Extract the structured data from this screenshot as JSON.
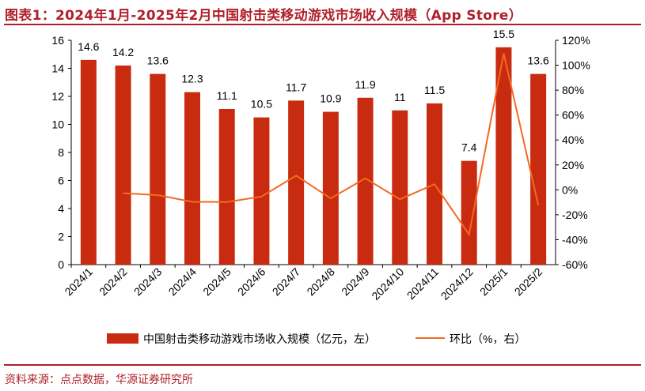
{
  "title": "图表1：2024年1月-2025年2月中国射击类移动游戏市场收入规模（App Store）",
  "source": "资料来源：点点数据，华源证券研究所",
  "colors": {
    "bar": "#c82b0f",
    "line": "#f26a21",
    "title": "#b0202a"
  },
  "chart_data": {
    "type": "bar+line",
    "categories": [
      "2024/1",
      "2024/2",
      "2024/3",
      "2024/4",
      "2024/5",
      "2024/6",
      "2024/7",
      "2024/8",
      "2024/9",
      "2024/10",
      "2024/11",
      "2024/12",
      "2025/1",
      "2025/2"
    ],
    "series": [
      {
        "name": "中国射击类移动游戏市场收入规模（亿元，左）",
        "type": "bar",
        "axis": "left",
        "values": [
          14.6,
          14.2,
          13.6,
          12.3,
          11.1,
          10.5,
          11.7,
          10.9,
          11.9,
          11,
          11.5,
          7.4,
          15.5,
          13.6
        ],
        "labels": [
          "14.6",
          "14.2",
          "13.6",
          "12.3",
          "11.1",
          "10.5",
          "11.7",
          "10.9",
          "11.9",
          "11",
          "11.5",
          "7.4",
          "15.5",
          "13.6"
        ]
      },
      {
        "name": "环比（%，右）",
        "type": "line",
        "axis": "right",
        "values": [
          null,
          -2.7,
          -4.2,
          -9.6,
          -9.8,
          -5.4,
          11.4,
          -6.8,
          9.2,
          -7.6,
          4.5,
          -35.7,
          109.5,
          -12.3
        ]
      }
    ],
    "y_left": {
      "range": [
        0,
        16
      ],
      "ticks": [
        "0",
        "2",
        "4",
        "6",
        "8",
        "10",
        "12",
        "14",
        "16"
      ]
    },
    "y_right": {
      "range": [
        -60,
        120
      ],
      "ticks": [
        "-60%",
        "-40%",
        "-20%",
        "0%",
        "20%",
        "40%",
        "60%",
        "80%",
        "100%",
        "120%"
      ]
    },
    "legend": "bottom"
  }
}
